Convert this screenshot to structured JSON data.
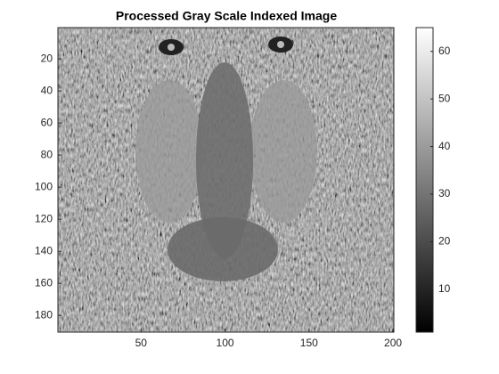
{
  "chart_data": {
    "type": "image",
    "title": "Processed Gray Scale Indexed Image",
    "xlim": [
      0.5,
      200.5
    ],
    "xticks": [
      50,
      100,
      150,
      200
    ],
    "ylim": [
      0.5,
      190.5
    ],
    "yticks": [
      20,
      40,
      60,
      80,
      100,
      120,
      140,
      160,
      180
    ],
    "colormap": "gray",
    "clim": [
      1,
      65
    ],
    "colorbar_ticks": [
      10,
      20,
      30,
      40,
      50,
      60
    ]
  }
}
